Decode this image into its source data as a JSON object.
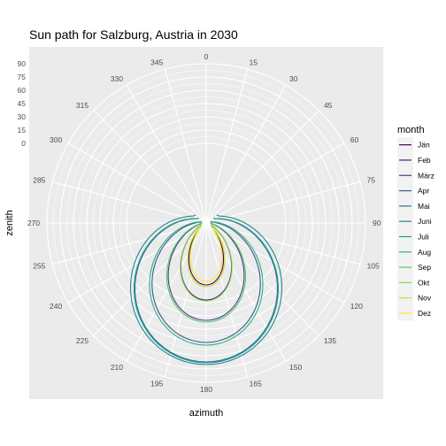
{
  "chart_data": {
    "type": "line",
    "coord": "polar",
    "title": "Sun path for Salzburg, Austria in 2030",
    "xlabel": "azimuth",
    "ylabel": "zenith",
    "x_ticks": [
      0,
      15,
      30,
      45,
      60,
      75,
      90,
      105,
      120,
      135,
      150,
      165,
      180,
      195,
      210,
      225,
      240,
      255,
      270,
      285,
      300,
      315,
      330,
      345
    ],
    "x_tick_labels": [
      "0",
      "15",
      "30",
      "45",
      "60",
      "75",
      "90",
      "105",
      "120",
      "135",
      "150",
      "165",
      "180",
      "195",
      "210",
      "225",
      "240",
      "255",
      "270",
      "285",
      "300",
      "315",
      "330",
      "345"
    ],
    "y_ticks": [
      0,
      15,
      30,
      45,
      60,
      75,
      90
    ],
    "y_tick_labels": [
      "0",
      "15",
      "30",
      "45",
      "60",
      "75",
      "90"
    ],
    "ylim": [
      -90,
      90
    ],
    "grid": true,
    "legend": {
      "title": "month",
      "position": "right"
    },
    "series": [
      {
        "name": "Jän",
        "color": "#440154",
        "az_start": 120.7,
        "az_end": 239.3,
        "zenith_min": -20.0,
        "zenith_at_rise": -83.0
      },
      {
        "name": "Feb",
        "color": "#482173",
        "az_start": 107.3,
        "az_end": 252.7,
        "zenith_min": -3.0,
        "zenith_at_rise": -84.0
      },
      {
        "name": "März",
        "color": "#433E85",
        "az_start": 91.0,
        "az_end": 269.0,
        "zenith_min": 20.0,
        "zenith_at_rise": -85.0
      },
      {
        "name": "Apr",
        "color": "#38598C",
        "az_start": 73.0,
        "az_end": 287.0,
        "zenith_min": 45.0,
        "zenith_at_rise": -85.0
      },
      {
        "name": "Mai",
        "color": "#2D708E",
        "az_start": 57.0,
        "az_end": 303.0,
        "zenith_min": 67.0,
        "zenith_at_rise": -80.0
      },
      {
        "name": "Juni",
        "color": "#25858E",
        "az_start": 52.5,
        "az_end": 307.5,
        "zenith_min": 70.0,
        "zenith_at_rise": -75.0
      },
      {
        "name": "Juli",
        "color": "#1E9B8A",
        "az_start": 56.0,
        "az_end": 304.0,
        "zenith_min": 68.0,
        "zenith_at_rise": -80.0
      },
      {
        "name": "Aug",
        "color": "#2BB07F",
        "az_start": 70.0,
        "az_end": 290.0,
        "zenith_min": 48.0,
        "zenith_at_rise": -85.0
      },
      {
        "name": "Sep",
        "color": "#51C56A",
        "az_start": 89.0,
        "az_end": 271.0,
        "zenith_min": 22.0,
        "zenith_at_rise": -85.0
      },
      {
        "name": "Okt",
        "color": "#85D54A",
        "az_start": 107.0,
        "az_end": 253.0,
        "zenith_min": -2.0,
        "zenith_at_rise": -84.0
      },
      {
        "name": "Nov",
        "color": "#C2DF23",
        "az_start": 118.0,
        "az_end": 242.0,
        "zenith_min": -18.0,
        "zenith_at_rise": -83.0
      },
      {
        "name": "Dez",
        "color": "#FDE725",
        "az_start": 124.0,
        "az_end": 236.0,
        "zenith_min": -24.0,
        "zenith_at_rise": -82.0
      }
    ]
  },
  "colors": {
    "panel_background": "#EBEBEB",
    "grid_major": "#FFFFFF",
    "tick_text": "#4D4D4D",
    "legend_key_background": "#F2F2F2"
  }
}
